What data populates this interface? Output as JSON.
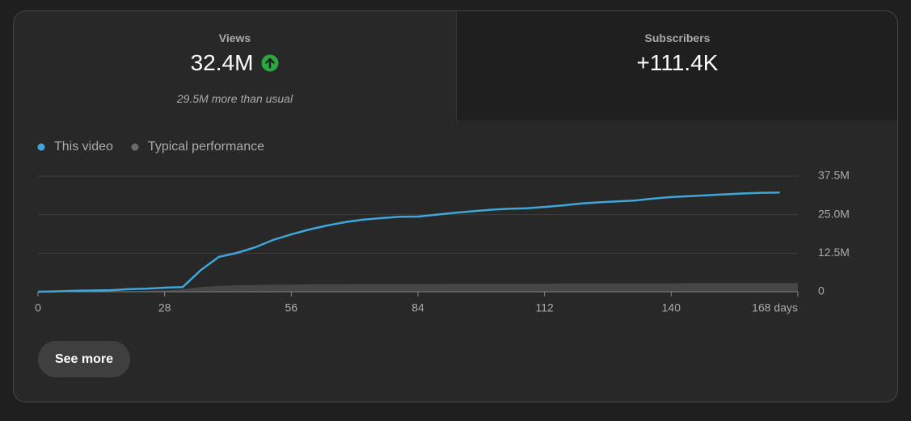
{
  "tabs": [
    {
      "label": "Views",
      "value": "32.4M",
      "note": "29.5M more than usual"
    },
    {
      "label": "Subscribers",
      "value": "+111.4K"
    }
  ],
  "chart_data": {
    "type": "line",
    "x": [
      0,
      4,
      8,
      12,
      16,
      20,
      24,
      28,
      32,
      36,
      40,
      44,
      48,
      52,
      56,
      60,
      64,
      68,
      72,
      76,
      80,
      84,
      88,
      92,
      96,
      100,
      104,
      108,
      112,
      116,
      120,
      124,
      128,
      132,
      136,
      140,
      144,
      148,
      152,
      156,
      160,
      164,
      168
    ],
    "series": [
      {
        "name": "This video",
        "color": "#3ea6d8",
        "values": [
          0,
          0.1,
          0.3,
          0.4,
          0.5,
          0.8,
          1.0,
          1.3,
          1.5,
          7.0,
          11.3,
          12.6,
          14.4,
          16.8,
          18.6,
          20.2,
          21.5,
          22.6,
          23.4,
          23.9,
          24.3,
          24.4,
          25.0,
          25.6,
          26.1,
          26.6,
          26.9,
          27.1,
          27.5,
          28.0,
          28.6,
          29.0,
          29.3,
          29.6,
          30.2,
          30.7,
          31.0,
          31.3,
          31.6,
          31.9,
          32.1,
          32.2,
          null
        ]
      },
      {
        "name": "Typical performance",
        "color": "#6b6b6b",
        "area": true,
        "values": [
          0,
          0,
          0.05,
          0.1,
          0.15,
          0.2,
          0.3,
          0.4,
          0.8,
          1.5,
          1.9,
          2.1,
          2.2,
          2.3,
          2.3,
          2.4,
          2.4,
          2.4,
          2.5,
          2.5,
          2.5,
          2.5,
          2.5,
          2.6,
          2.6,
          2.6,
          2.6,
          2.6,
          2.6,
          2.7,
          2.7,
          2.7,
          2.7,
          2.7,
          2.7,
          2.7,
          2.8,
          2.8,
          2.8,
          2.8,
          2.8,
          2.8,
          2.8
        ]
      }
    ],
    "xlim": [
      0,
      168
    ],
    "xticks": [
      0,
      28,
      56,
      84,
      112,
      140,
      {
        "value": 168,
        "label": "168 days"
      }
    ],
    "ylim": [
      0,
      37.5
    ],
    "yticks": [
      0,
      {
        "value": 12.5,
        "label": "12.5M"
      },
      {
        "value": 25,
        "label": "25.0M"
      },
      {
        "value": 37.5,
        "label": "37.5M"
      }
    ],
    "grid": true
  },
  "button": "See more"
}
